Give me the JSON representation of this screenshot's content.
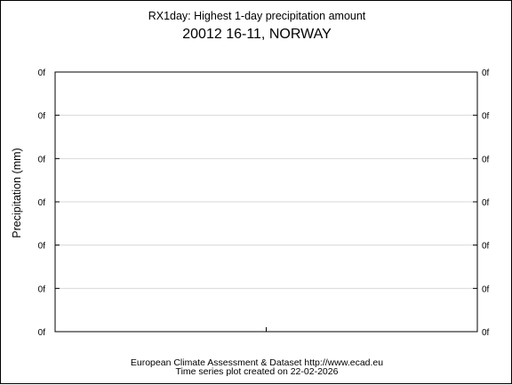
{
  "colors": {
    "text": "#000000",
    "grid": "#d9d9d9",
    "axis": "#000000",
    "background": "#ffffff"
  },
  "footer": {
    "line1": "European Climate Assessment & Dataset  http://www.ecad.eu",
    "line2": "Time series plot created on 22-02-2026"
  },
  "chart_data": {
    "type": "line",
    "title": "RX1day: Highest 1-day precipitation amount",
    "subtitle": "20012 16-11, NORWAY",
    "xlabel": "",
    "ylabel": "Precipitation (mm)",
    "y_tick_labels": [
      "0f",
      "0f",
      "0f",
      "0f",
      "0f",
      "0f",
      "0f"
    ],
    "x_tick_labels": [],
    "series": [],
    "grid": true,
    "legend": "none"
  }
}
